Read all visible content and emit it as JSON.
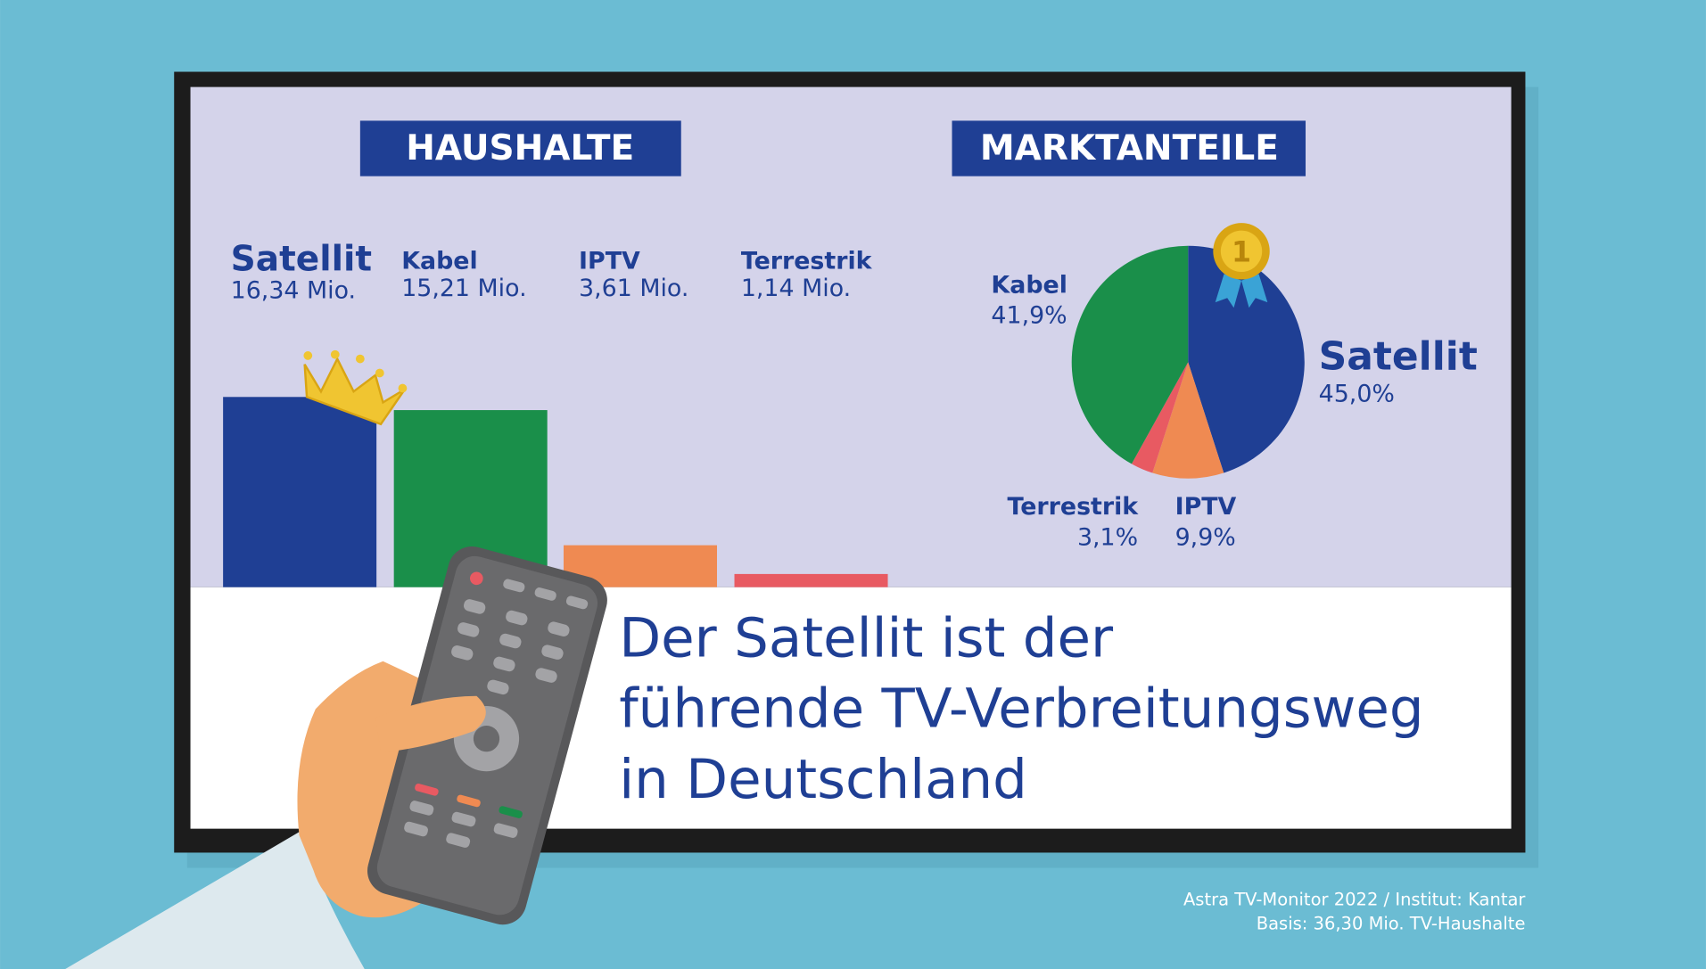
{
  "chart_data": [
    {
      "type": "bar",
      "title": "HAUSHALTE",
      "categories": [
        "Satellit",
        "Kabel",
        "IPTV",
        "Terrestrik"
      ],
      "values": [
        16.34,
        15.21,
        3.61,
        1.14
      ],
      "value_labels": [
        "16,34 Mio.",
        "15,21 Mio.",
        "3,61 Mio.",
        "1,14 Mio."
      ],
      "colors": [
        "#1f3f94",
        "#1a8f4a",
        "#ef8a52",
        "#e85a62"
      ]
    },
    {
      "type": "pie",
      "title": "MARKTANTEILE",
      "categories": [
        "Satellit",
        "IPTV",
        "Terrestrik",
        "Kabel"
      ],
      "values": [
        45.0,
        9.9,
        3.1,
        41.9
      ],
      "value_labels": [
        "45,0%",
        "9,9%",
        "3,1%",
        "41,9%"
      ],
      "colors": [
        "#1f3f94",
        "#ef8a52",
        "#e85a62",
        "#1a8f4a"
      ]
    }
  ],
  "headline": [
    "Der Satellit ist der",
    "führende TV-Verbreitungsweg",
    "in Deutschland"
  ],
  "source": [
    "Astra TV-Monitor 2022 / Institut: Kantar",
    "Basis: 36,30 Mio. TV-Haushalte"
  ]
}
